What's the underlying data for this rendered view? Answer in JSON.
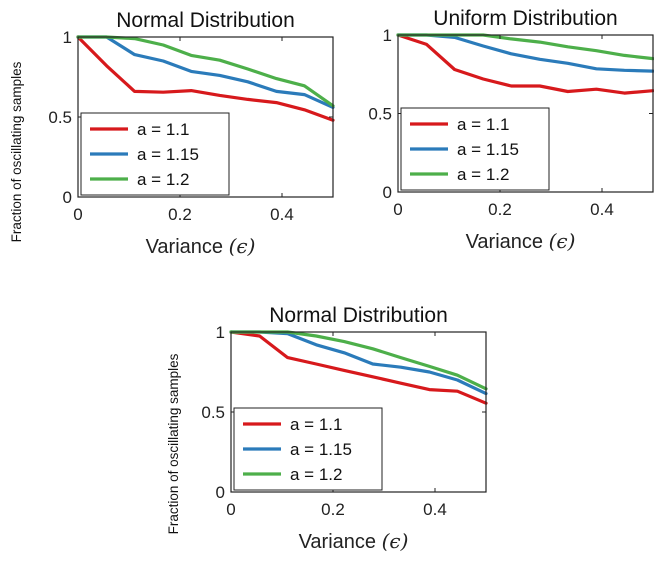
{
  "figure": {
    "ylabel_left": "Fraction of oscillating samples",
    "ylabel_bottom": "Fraction of oscillating samples"
  },
  "colors": {
    "a11": "#d7191c",
    "a115": "#2b7bba",
    "a12": "#4daf4a",
    "axis": "#222222"
  },
  "chart_data": [
    {
      "type": "line",
      "title": "Normal Distribution",
      "xlabel": "Variance",
      "xlabel_symbol": "(ϵ)",
      "ylabel": "Fraction of oscillating samples",
      "xlim": [
        0,
        0.5
      ],
      "ylim": [
        0,
        1
      ],
      "xticks": [
        "0",
        "0.2",
        "0.4"
      ],
      "yticks": [
        "0",
        "0.5",
        "1"
      ],
      "legend_position": "bottom-left",
      "grid": false,
      "series": [
        {
          "name": "a = 1.1",
          "color": "#d7191c",
          "x": [
            0,
            0.056,
            0.111,
            0.167,
            0.222,
            0.278,
            0.333,
            0.389,
            0.444,
            0.5
          ],
          "y": [
            1.0,
            0.82,
            0.66,
            0.655,
            0.665,
            0.635,
            0.61,
            0.59,
            0.545,
            0.48
          ]
        },
        {
          "name": "a = 1.15",
          "color": "#2b7bba",
          "x": [
            0,
            0.056,
            0.111,
            0.167,
            0.222,
            0.278,
            0.333,
            0.389,
            0.444,
            0.5
          ],
          "y": [
            1.0,
            1.0,
            0.89,
            0.85,
            0.785,
            0.76,
            0.72,
            0.66,
            0.64,
            0.56
          ]
        },
        {
          "name": "a = 1.2",
          "color": "#4daf4a",
          "x": [
            0,
            0.056,
            0.111,
            0.167,
            0.222,
            0.278,
            0.333,
            0.389,
            0.444,
            0.5
          ],
          "y": [
            1.0,
            1.0,
            0.99,
            0.95,
            0.885,
            0.855,
            0.8,
            0.74,
            0.695,
            0.57
          ]
        }
      ]
    },
    {
      "type": "line",
      "title": "Uniform Distribution",
      "xlabel": "Variance",
      "xlabel_symbol": "(ϵ)",
      "xlim": [
        0,
        0.5
      ],
      "ylim": [
        0,
        1
      ],
      "xticks": [
        "0",
        "0.2",
        "0.4"
      ],
      "yticks": [
        "0",
        "0.5",
        "1"
      ],
      "legend_position": "bottom-left",
      "grid": false,
      "series": [
        {
          "name": "a = 1.1",
          "color": "#d7191c",
          "x": [
            0,
            0.056,
            0.111,
            0.167,
            0.222,
            0.278,
            0.333,
            0.389,
            0.444,
            0.5
          ],
          "y": [
            1.0,
            0.94,
            0.78,
            0.72,
            0.675,
            0.675,
            0.64,
            0.655,
            0.63,
            0.645
          ]
        },
        {
          "name": "a = 1.15",
          "color": "#2b7bba",
          "x": [
            0,
            0.056,
            0.111,
            0.167,
            0.222,
            0.278,
            0.333,
            0.389,
            0.444,
            0.5
          ],
          "y": [
            1.0,
            1.0,
            0.985,
            0.93,
            0.88,
            0.845,
            0.82,
            0.785,
            0.775,
            0.77
          ]
        },
        {
          "name": "a = 1.2",
          "color": "#4daf4a",
          "x": [
            0,
            0.056,
            0.111,
            0.167,
            0.222,
            0.278,
            0.333,
            0.389,
            0.444,
            0.5
          ],
          "y": [
            1.0,
            1.0,
            1.0,
            1.0,
            0.975,
            0.955,
            0.925,
            0.9,
            0.87,
            0.85
          ]
        }
      ]
    },
    {
      "type": "line",
      "title": "Normal Distribution",
      "xlabel": "Variance",
      "xlabel_symbol": "(ϵ)",
      "ylabel": "Fraction of oscillating samples",
      "xlim": [
        0,
        0.5
      ],
      "ylim": [
        0,
        1
      ],
      "xticks": [
        "0",
        "0.2",
        "0.4"
      ],
      "yticks": [
        "0",
        "0.5",
        "1"
      ],
      "legend_position": "bottom-left",
      "grid": false,
      "series": [
        {
          "name": "a = 1.1",
          "color": "#d7191c",
          "x": [
            0,
            0.056,
            0.111,
            0.167,
            0.222,
            0.278,
            0.333,
            0.389,
            0.444,
            0.5
          ],
          "y": [
            1.0,
            0.975,
            0.84,
            0.8,
            0.76,
            0.72,
            0.68,
            0.64,
            0.63,
            0.555
          ]
        },
        {
          "name": "a = 1.15",
          "color": "#2b7bba",
          "x": [
            0,
            0.056,
            0.111,
            0.167,
            0.222,
            0.278,
            0.333,
            0.389,
            0.444,
            0.5
          ],
          "y": [
            1.0,
            1.0,
            0.99,
            0.92,
            0.87,
            0.8,
            0.78,
            0.75,
            0.7,
            0.615
          ]
        },
        {
          "name": "a = 1.2",
          "color": "#4daf4a",
          "x": [
            0,
            0.056,
            0.111,
            0.167,
            0.222,
            0.278,
            0.333,
            0.389,
            0.444,
            0.5
          ],
          "y": [
            1.0,
            1.0,
            1.0,
            0.975,
            0.94,
            0.895,
            0.84,
            0.785,
            0.73,
            0.645
          ]
        }
      ]
    }
  ]
}
